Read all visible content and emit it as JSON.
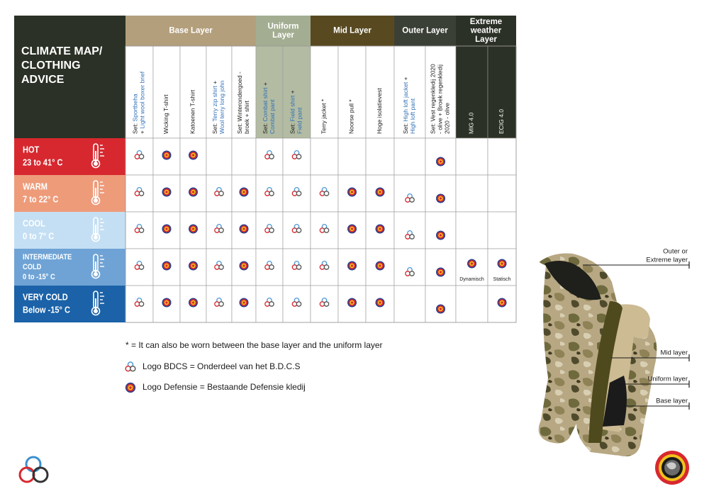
{
  "title": [
    "CLIMATE MAP/",
    "CLOTHING",
    "ADVICE"
  ],
  "groups": [
    {
      "title": [
        "Base Layer"
      ],
      "color": "#b39f7c",
      "text_color": "#ffffff",
      "header_bg": "#ffffff",
      "header_text": "#1a1a1a",
      "span": 5
    },
    {
      "title": [
        "Uniform",
        "Layer"
      ],
      "color": "#a3ad91",
      "text_color": "#ffffff",
      "header_bg": "#b3bca2",
      "header_text": "#1a1a1a",
      "span": 2
    },
    {
      "title": [
        "Mid Layer"
      ],
      "color": "#584920",
      "text_color": "#ffffff",
      "header_bg": "#ffffff",
      "header_text": "#1a1a1a",
      "span": 3
    },
    {
      "title": [
        "Outer Layer"
      ],
      "color": "#3b4036",
      "text_color": "#ffffff",
      "header_bg": "#ffffff",
      "header_text": "#1a1a1a",
      "span": 2
    },
    {
      "title": [
        "Extreme",
        "weather",
        "Layer"
      ],
      "color": "#2b3126",
      "text_color": "#ffffff",
      "header_bg": "#2b3126",
      "header_text": "#ffffff",
      "span": 2
    }
  ],
  "columns": [
    {
      "lines": [
        [
          "Set: ",
          {
            "text": "Sportbeha",
            "color": "#2f6fb6"
          }
        ],
        [
          "+ ",
          {
            "text": "Light wool boxer brief",
            "color": "#2f6fb6"
          }
        ]
      ]
    },
    {
      "lines": [
        [
          "Wicking T-shirt"
        ]
      ]
    },
    {
      "lines": [
        [
          "Katoenen T-shirt"
        ]
      ]
    },
    {
      "lines": [
        [
          "Set: ",
          {
            "text": "Terry zip shirt",
            "color": "#2f6fb6"
          },
          " +"
        ],
        [
          {
            "text": "Wool terry long john",
            "color": "#2f6fb6"
          }
        ]
      ]
    },
    {
      "lines": [
        [
          "Set: Winterondergoed -"
        ],
        [
          "broek + shirt"
        ]
      ]
    },
    {
      "lines": [
        [
          "Set: ",
          {
            "text": "Combat shirt",
            "color": "#2f6fb6"
          },
          " +"
        ],
        [
          {
            "text": "Combat pant",
            "color": "#2f6fb6"
          }
        ]
      ]
    },
    {
      "lines": [
        [
          "Set: ",
          {
            "text": "Field shirt",
            "color": "#2f6fb6"
          },
          " +"
        ],
        [
          {
            "text": "Field pant",
            "color": "#2f6fb6"
          }
        ]
      ]
    },
    {
      "lines": [
        [
          "Terry jacket *"
        ]
      ]
    },
    {
      "lines": [
        [
          "Noorse pull *"
        ]
      ]
    },
    {
      "lines": [
        [
          "Hoge isolatievest"
        ]
      ]
    },
    {
      "lines": [
        [
          "Set: ",
          {
            "text": "High loft jacket",
            "color": "#2f6fb6"
          },
          " +"
        ],
        [
          {
            "text": "High loft pant",
            "color": "#2f6fb6"
          }
        ]
      ]
    },
    {
      "lines": [
        [
          "Set: Vest regenkledij 2020"
        ],
        [
          "- olive + Broek regenkledij"
        ],
        [
          "2020 - olive"
        ]
      ]
    },
    {
      "lines": [
        [
          "MIG 4.0"
        ]
      ]
    },
    {
      "lines": [
        [
          "ECIG 4.0"
        ]
      ]
    }
  ],
  "rows": [
    {
      "lines": [
        "HOT",
        "23 to 41° C"
      ],
      "color": "#d7282f",
      "text_color": "#ffffff",
      "cells": [
        "bdcs",
        "defensie",
        "defensie",
        null,
        null,
        "bdcs",
        "bdcs",
        null,
        null,
        null,
        null,
        "defensie",
        null,
        null
      ]
    },
    {
      "lines": [
        "WARM",
        "7 to 22° C"
      ],
      "color": "#ee9b7a",
      "text_color": "#ffffff",
      "cells": [
        "bdcs",
        "defensie",
        "defensie",
        "bdcs",
        "defensie",
        "bdcs",
        "bdcs",
        "bdcs",
        "defensie",
        "defensie",
        "bdcs",
        "defensie",
        null,
        null
      ]
    },
    {
      "lines": [
        "COOL",
        "0 to 7° C"
      ],
      "color": "#c4dff3",
      "text_color": "#ffffff",
      "cells": [
        "bdcs",
        "defensie",
        "defensie",
        "bdcs",
        "defensie",
        "bdcs",
        "bdcs",
        "bdcs",
        "defensie",
        "defensie",
        "bdcs",
        "defensie",
        null,
        null
      ]
    },
    {
      "lines": [
        "INTERMEDIATE",
        "COLD",
        "0 to -15° C"
      ],
      "color": "#6fa3d5",
      "text_color": "#ffffff",
      "cells": [
        "bdcs",
        "defensie",
        "defensie",
        "bdcs",
        "defensie",
        "bdcs",
        "bdcs",
        "bdcs",
        "defensie",
        "defensie",
        "bdcs",
        "defensie",
        {
          "icon": "defensie",
          "label": "Dynamisch"
        },
        {
          "icon": "defensie",
          "label": "Statisch"
        }
      ]
    },
    {
      "lines": [
        "VERY COLD",
        "Below -15° C"
      ],
      "color": "#1b62a8",
      "text_color": "#ffffff",
      "cells": [
        "bdcs",
        "defensie",
        "defensie",
        "bdcs",
        "defensie",
        "bdcs",
        "bdcs",
        "bdcs",
        "defensie",
        "defensie",
        null,
        "defensie",
        null,
        "defensie"
      ]
    }
  ],
  "legend": {
    "note": "* = It can also be worn between the base layer and the uniform layer",
    "bdcs": "Logo BDCS = Onderdeel van het B.D.C.S",
    "defensie": "Logo Defensie = Bestaande Defensie kledij"
  },
  "diagram": {
    "labels": [
      [
        "Outer or",
        "Extreme layer"
      ],
      [
        "Mid layer"
      ],
      [
        "Uniform layer"
      ],
      [
        "Base layer"
      ]
    ]
  }
}
